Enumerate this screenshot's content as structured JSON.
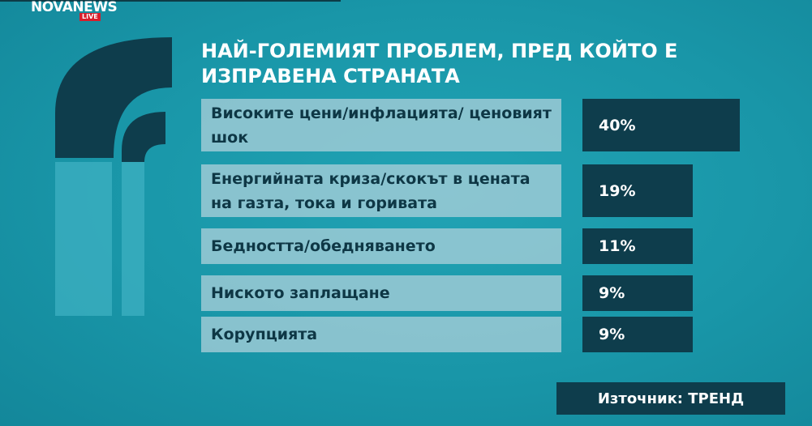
{
  "logo": {
    "name": "NOVANEWS",
    "badge": "LIVE"
  },
  "chart_data": {
    "type": "bar",
    "orientation": "horizontal",
    "title": "НАЙ-ГОЛЕМИЯТ ПРОБЛЕМ, ПРЕД КОЙТО Е ИЗПРАВЕНА СТРАНАТА",
    "categories": [
      "Високите цени/инфлацията/ ценовият шок",
      "Енергийната криза/скокът в цената на газта, тока и горивата",
      "Бедността/обедняването",
      "Ниското заплащане",
      "Корупцията"
    ],
    "values": [
      40,
      19,
      11,
      9,
      9
    ],
    "value_labels": [
      "40%",
      "19%",
      "11%",
      "9%",
      "9%"
    ],
    "unit": "%"
  },
  "source": "Източник: ТРЕНД",
  "colors": {
    "background": "#1996a8",
    "bar": "#0e3d4c",
    "label_box": "#a8ced8",
    "text_dark": "#0e3745"
  }
}
